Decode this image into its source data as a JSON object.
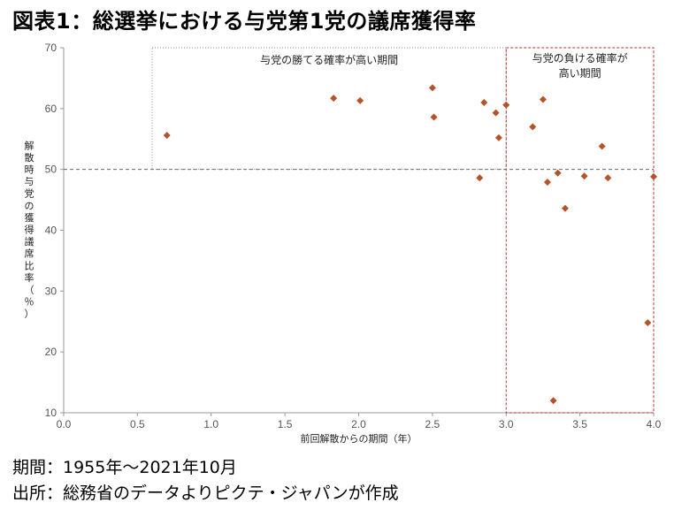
{
  "title": "図表1：総選挙における与党第1党の議席獲得率",
  "footer": {
    "period": "期間：1955年～2021年10月",
    "source": "出所：総務省のデータよりピクテ・ジャパンが作成"
  },
  "chart_data": {
    "type": "scatter",
    "title": "図表1：総選挙における与党第1党の議席獲得率",
    "xlabel": "前回解散からの期間（年）",
    "ylabel": "解散時与党の獲得議席比率（％）",
    "xlim": [
      0.0,
      4.0
    ],
    "ylim": [
      10,
      70
    ],
    "x_ticks": [
      "0.0",
      "0.5",
      "1.0",
      "1.5",
      "2.0",
      "2.5",
      "3.0",
      "3.5",
      "4.0"
    ],
    "y_ticks": [
      "10",
      "20",
      "30",
      "40",
      "50",
      "60",
      "70"
    ],
    "grid": false,
    "reference_line_y": 50,
    "annotations": [
      {
        "text": "与党の勝てる確率が高い期間",
        "region": {
          "x": [
            0.6,
            3.0
          ],
          "y": [
            50,
            70
          ]
        }
      },
      {
        "text_lines": [
          "与党の負ける確率が",
          "高い期間"
        ],
        "region": {
          "x": [
            3.0,
            4.0
          ],
          "y": [
            10,
            70
          ]
        }
      }
    ],
    "series": [
      {
        "marker": "diamond",
        "color": "#B5532A",
        "points": [
          {
            "x": 0.7,
            "y": 55.6
          },
          {
            "x": 1.83,
            "y": 61.7
          },
          {
            "x": 2.01,
            "y": 61.3
          },
          {
            "x": 2.5,
            "y": 63.4
          },
          {
            "x": 2.51,
            "y": 58.6
          },
          {
            "x": 2.82,
            "y": 48.6
          },
          {
            "x": 2.85,
            "y": 61.0
          },
          {
            "x": 2.93,
            "y": 59.3
          },
          {
            "x": 2.95,
            "y": 55.2
          },
          {
            "x": 3.0,
            "y": 60.6
          },
          {
            "x": 3.18,
            "y": 57.0
          },
          {
            "x": 3.25,
            "y": 61.5
          },
          {
            "x": 3.28,
            "y": 47.9
          },
          {
            "x": 3.32,
            "y": 12.0
          },
          {
            "x": 3.35,
            "y": 49.4
          },
          {
            "x": 3.4,
            "y": 43.6
          },
          {
            "x": 3.53,
            "y": 48.9
          },
          {
            "x": 3.65,
            "y": 53.8
          },
          {
            "x": 3.69,
            "y": 48.6
          },
          {
            "x": 3.96,
            "y": 24.8
          },
          {
            "x": 4.0,
            "y": 48.8
          }
        ]
      }
    ]
  }
}
